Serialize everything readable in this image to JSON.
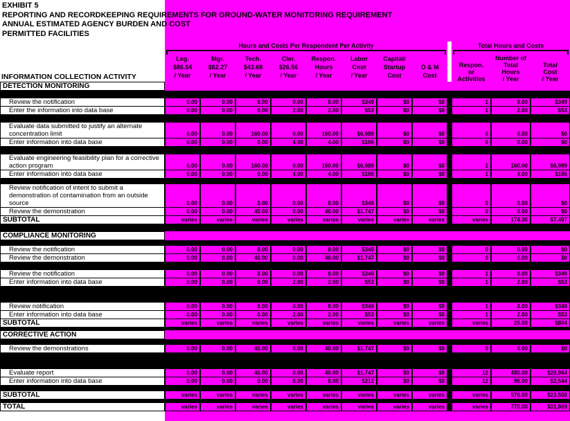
{
  "title": {
    "line1": "EXHIBIT 5",
    "line2": "REPORTING AND RECORDKEEPING REQUIREMENTS FOR GROUND-WATER MONITORING REQUIREMENT",
    "line3": "ANNUAL ESTIMATED AGENCY BURDEN AND COST",
    "line4": "PERMITTED FACILITIES"
  },
  "header": {
    "left_title": "INFORMATION COLLECTION ACTIVITY",
    "group1": {
      "title": "Hours and Costs Per Respondent Per Activity",
      "columns": [
        [
          "Leg.",
          "$86.54",
          "/ Year"
        ],
        [
          "Mgr.",
          "$62.27",
          "/ Year"
        ],
        [
          "Tech.",
          "$43.68",
          "/ Year"
        ],
        [
          "Cler.",
          "$26.56",
          "/ Year"
        ],
        [
          "Respon.",
          "Hours",
          "/ Year"
        ],
        [
          "Labor",
          "Cost",
          "/ Year"
        ],
        [
          "Capital/",
          "Startup",
          "Cost"
        ],
        [
          "",
          "O & M",
          "Cost"
        ]
      ]
    },
    "group2": {
      "title": "Total Hours and Costs",
      "subtitle": "Number of",
      "columns": [
        [
          "Respon.",
          "or",
          "Activities"
        ],
        [
          "Total",
          "Hours",
          "/ Year"
        ],
        [
          "Total",
          "Cost",
          "/ Year"
        ]
      ]
    }
  },
  "rows": [
    {
      "kind": "section",
      "label": "DETECTION MONITORING"
    },
    {
      "kind": "band",
      "size": "md"
    },
    {
      "kind": "item",
      "lines": 1,
      "label": "Review the notification",
      "cells": [
        "0.00",
        "0.00",
        "8.00",
        "0.00",
        "8.00",
        "$349",
        "$0",
        "$0",
        "1",
        "8.00",
        "$349"
      ]
    },
    {
      "kind": "item",
      "lines": 1,
      "label": "Enter the information into data base",
      "cells": [
        "0.00",
        "0.00",
        "0.00",
        "2.00",
        "2.00",
        "$53",
        "$0",
        "$0",
        "1",
        "2.00",
        "$53"
      ]
    },
    {
      "kind": "band",
      "size": "md"
    },
    {
      "kind": "item",
      "lines": 2,
      "label": "Evaluate data submitted to justify an alternate concentration limit",
      "cells": [
        "0.00",
        "0.00",
        "160.00",
        "0.00",
        "160.00",
        "$6,989",
        "$0",
        "$0",
        "0",
        "0.00",
        "$0"
      ]
    },
    {
      "kind": "item",
      "lines": 1,
      "label": "Enter information into data base",
      "cells": [
        "0.00",
        "0.00",
        "0.00",
        "4.00",
        "4.00",
        "$106",
        "$0",
        "$0",
        "0",
        "0.00",
        "$0"
      ]
    },
    {
      "kind": "band",
      "size": "md"
    },
    {
      "kind": "item",
      "lines": 2,
      "label": "Evaluate engineering feasibility plan for a corrective action program",
      "cells": [
        "0.00",
        "0.00",
        "160.00",
        "0.00",
        "160.00",
        "$6,989",
        "$0",
        "$0",
        "1",
        "160.00",
        "$6,989"
      ]
    },
    {
      "kind": "item",
      "lines": 1,
      "label": "Enter information into data base",
      "cells": [
        "0.00",
        "0.00",
        "0.00",
        "4.00",
        "4.00",
        "$106",
        "$0",
        "$0",
        "1",
        "4.00",
        "$106"
      ]
    },
    {
      "kind": "band",
      "size": "sm"
    },
    {
      "kind": "item",
      "lines": 3,
      "label": "Review notification of intent to submit a demonstration of contamination from an outside source",
      "cells": [
        "0.00",
        "0.00",
        "8.00",
        "0.00",
        "8.00",
        "$349",
        "$0",
        "$0",
        "0",
        "0.00",
        "$0"
      ]
    },
    {
      "kind": "item",
      "lines": 1,
      "label": "Review the demonstration",
      "cells": [
        "0.00",
        "0.00",
        "40.00",
        "0.00",
        "40.00",
        "$1,747",
        "$0",
        "$0",
        "0",
        "0.00",
        "$0"
      ]
    },
    {
      "kind": "subtotal",
      "label": "SUBTOTAL",
      "cells": [
        "varies",
        "varies",
        "varies",
        "varies",
        "varies",
        "varies",
        "varies",
        "varies",
        "varies",
        "174.00",
        "$7,497"
      ]
    },
    {
      "kind": "band",
      "size": "md"
    },
    {
      "kind": "section",
      "label": "COMPLIANCE MONITORING"
    },
    {
      "kind": "band",
      "size": "sm"
    },
    {
      "kind": "item",
      "lines": 1,
      "label": "Review the notification",
      "cells": [
        "0.00",
        "0.00",
        "8.00",
        "0.00",
        "8.00",
        "$349",
        "$0",
        "$0",
        "0",
        "0.00",
        "$0"
      ]
    },
    {
      "kind": "item",
      "lines": 1,
      "label": "Review the demonstration",
      "cells": [
        "0.00",
        "0.00",
        "40.00",
        "0.00",
        "40.00",
        "$1,747",
        "$0",
        "$0",
        "0",
        "0.00",
        "$0"
      ]
    },
    {
      "kind": "band",
      "size": "md"
    },
    {
      "kind": "item",
      "lines": 1,
      "label": "Review the notification",
      "cells": [
        "0.00",
        "0.00",
        "8.00",
        "0.00",
        "8.00",
        "$349",
        "$0",
        "$0",
        "1",
        "8.00",
        "$349"
      ]
    },
    {
      "kind": "item",
      "lines": 1,
      "label": "Enter information into data base",
      "cells": [
        "0.00",
        "0.00",
        "0.00",
        "2.00",
        "2.00",
        "$53",
        "$0",
        "$0",
        "1",
        "2.00",
        "$53"
      ]
    },
    {
      "kind": "band",
      "size": "lg"
    },
    {
      "kind": "item",
      "lines": 1,
      "label": "Review notification",
      "cells": [
        "0.00",
        "0.00",
        "8.00",
        "0.00",
        "8.00",
        "$349",
        "$0",
        "$0",
        "1",
        "8.00",
        "$349"
      ]
    },
    {
      "kind": "item",
      "lines": 1,
      "label": "Enter information into data base",
      "cells": [
        "0.00",
        "0.00",
        "0.00",
        "2.00",
        "2.00",
        "$53",
        "$0",
        "$0",
        "1",
        "2.00",
        "$53"
      ]
    },
    {
      "kind": "subtotal",
      "label": "SUBTOTAL",
      "cells": [
        "varies",
        "varies",
        "varies",
        "varies",
        "varies",
        "varies",
        "varies",
        "varies",
        "varies",
        "20.00",
        "$804"
      ]
    },
    {
      "kind": "band",
      "size": "xs"
    },
    {
      "kind": "section",
      "label": "CORRECTIVE ACTION"
    },
    {
      "kind": "band",
      "size": "sm"
    },
    {
      "kind": "item",
      "lines": 1,
      "label": "Review the demonstrations",
      "cells": [
        "0.00",
        "0.00",
        "40.00",
        "0.00",
        "40.00",
        "$1,747",
        "$0",
        "$0",
        "0",
        "0.00",
        "$0"
      ]
    },
    {
      "kind": "band",
      "size": "lg"
    },
    {
      "kind": "item",
      "lines": 1,
      "label": "Evaluate report",
      "cells": [
        "0.00",
        "0.00",
        "40.00",
        "0.00",
        "40.00",
        "$1,747",
        "$0",
        "$0",
        "12",
        "480.00",
        "$20,964"
      ]
    },
    {
      "kind": "item",
      "lines": 1,
      "label": "Enter information into data base",
      "cells": [
        "0.00",
        "0.00",
        "0.00",
        "8.00",
        "8.00",
        "$212",
        "$0",
        "$0",
        "12",
        "96.00",
        "$2,544"
      ]
    },
    {
      "kind": "band",
      "size": "sm"
    },
    {
      "kind": "subtotal",
      "label": "SUBTOTAL",
      "cells": [
        "varies",
        "varies",
        "varies",
        "varies",
        "varies",
        "varies",
        "varies",
        "varies",
        "varies",
        "576.00",
        "$23,508"
      ]
    },
    {
      "kind": "band",
      "size": "xs"
    },
    {
      "kind": "total",
      "label": "TOTAL",
      "cells": [
        "varies",
        "varies",
        "varies",
        "varies",
        "varies",
        "varies",
        "varies",
        "varies",
        "varies",
        "770.00",
        "$31,809"
      ]
    }
  ],
  "colors": {
    "highlight": "#FF00FF",
    "ink": "#000000",
    "paper": "#FFFFFF"
  }
}
